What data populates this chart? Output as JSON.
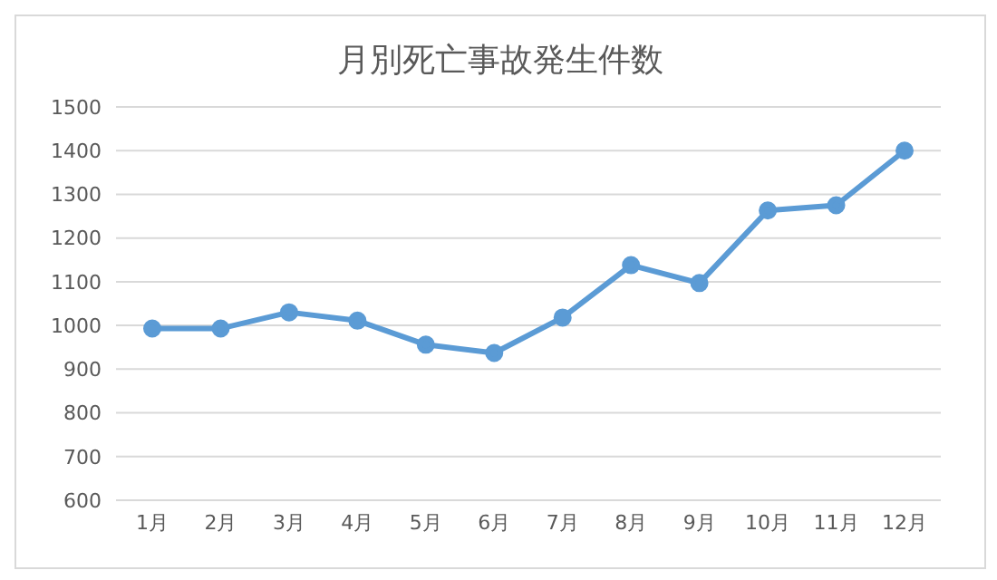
{
  "chart_data": {
    "type": "line",
    "title": "月別死亡事故発生件数",
    "categories": [
      "1月",
      "2月",
      "3月",
      "4月",
      "5月",
      "6月",
      "7月",
      "8月",
      "9月",
      "10月",
      "11月",
      "12月"
    ],
    "series": [
      {
        "color": "#5b9bd5",
        "values": [
          993,
          993,
          1030,
          1011,
          956,
          937,
          1018,
          1138,
          1097,
          1263,
          1275,
          1400
        ]
      }
    ],
    "ylim": [
      600,
      1500
    ],
    "yticks": [
      600,
      700,
      800,
      900,
      1000,
      1100,
      1200,
      1300,
      1400,
      1500
    ],
    "grid": "y",
    "marker": "circle",
    "legend": false
  }
}
